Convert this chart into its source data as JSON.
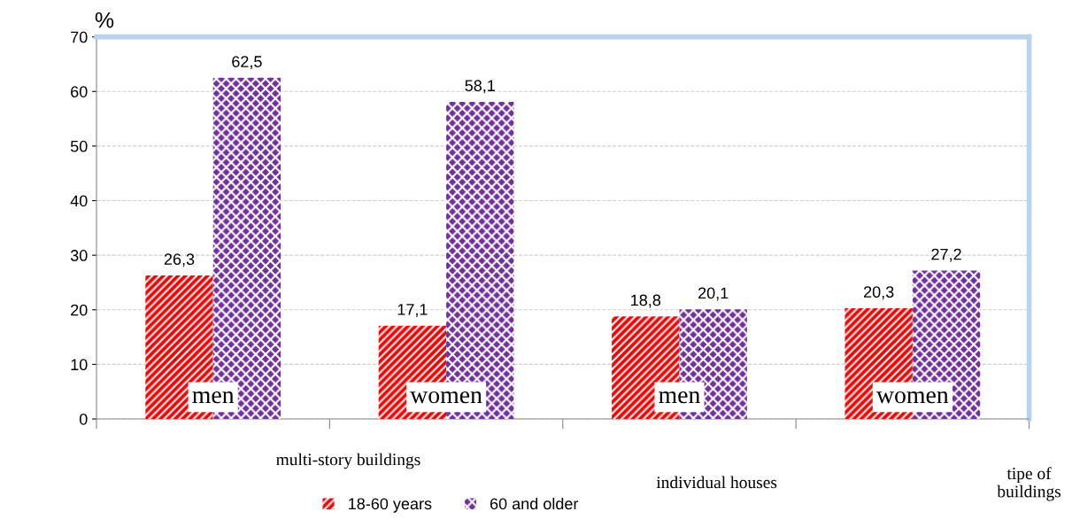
{
  "chart_data": {
    "type": "bar",
    "categories": [
      "men",
      "women",
      "men",
      "women"
    ],
    "series": [
      {
        "name": "18-60 years",
        "color": "#ff0000",
        "values": [
          26.3,
          17.1,
          18.8,
          20.3
        ],
        "value_labels": [
          "26,3",
          "17,1",
          "18,8",
          "20,3"
        ]
      },
      {
        "name": "60 and older",
        "color": "#7030a0",
        "values": [
          62.5,
          58.1,
          20.1,
          27.2
        ],
        "value_labels": [
          "62,5",
          "58,1",
          "20,1",
          "27,2"
        ]
      }
    ],
    "ylabel": "%",
    "xlabel": "tipe of buildings",
    "annotations": [
      "multi-story buildings",
      "individual houses"
    ],
    "ylim": [
      0,
      70
    ],
    "yticks": [
      0,
      10,
      20,
      30,
      40,
      50,
      60,
      70
    ],
    "grid": "y",
    "legend": "bottom"
  }
}
